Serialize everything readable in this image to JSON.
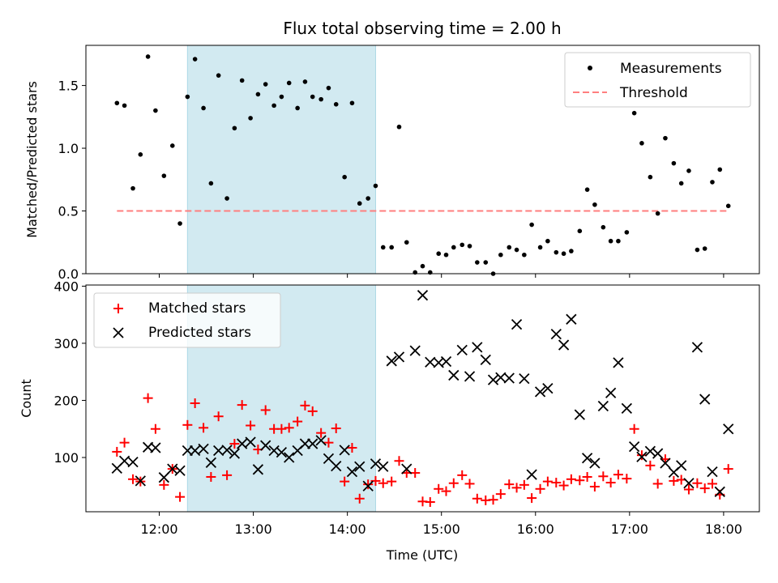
{
  "chart_data": [
    {
      "type": "scatter",
      "title": "Flux total observing time = 2.00 h",
      "ylabel": "Matched/Predicted stars",
      "ylim": [
        0,
        1.82
      ],
      "xlim": [
        11.22,
        18.38
      ],
      "yticks": [
        0.0,
        0.5,
        1.0,
        1.5
      ],
      "ytick_labels": [
        "0.0",
        "0.5",
        "1.0",
        "1.5"
      ],
      "highlight_span": [
        12.3,
        14.3
      ],
      "highlight_color": "#add8e6",
      "legend_placement": "top-right",
      "series": [
        {
          "name": "Measurements",
          "marker": "dot",
          "color": "#000000",
          "points": [
            [
              11.55,
              1.36
            ],
            [
              11.63,
              1.34
            ],
            [
              11.72,
              0.68
            ],
            [
              11.8,
              0.95
            ],
            [
              11.88,
              1.73
            ],
            [
              11.96,
              1.3
            ],
            [
              12.05,
              0.78
            ],
            [
              12.14,
              1.02
            ],
            [
              12.22,
              0.4
            ],
            [
              12.3,
              1.41
            ],
            [
              12.38,
              1.71
            ],
            [
              12.47,
              1.32
            ],
            [
              12.55,
              0.72
            ],
            [
              12.63,
              1.58
            ],
            [
              12.72,
              0.6
            ],
            [
              12.8,
              1.16
            ],
            [
              12.88,
              1.54
            ],
            [
              12.97,
              1.24
            ],
            [
              13.05,
              1.43
            ],
            [
              13.13,
              1.51
            ],
            [
              13.22,
              1.34
            ],
            [
              13.3,
              1.41
            ],
            [
              13.38,
              1.52
            ],
            [
              13.47,
              1.32
            ],
            [
              13.55,
              1.53
            ],
            [
              13.63,
              1.41
            ],
            [
              13.72,
              1.39
            ],
            [
              13.8,
              1.48
            ],
            [
              13.88,
              1.35
            ],
            [
              13.97,
              0.77
            ],
            [
              14.05,
              1.36
            ],
            [
              14.13,
              0.56
            ],
            [
              14.22,
              0.6
            ],
            [
              14.3,
              0.7
            ],
            [
              14.38,
              0.21
            ],
            [
              14.47,
              0.21
            ],
            [
              14.55,
              1.17
            ],
            [
              14.63,
              0.25
            ],
            [
              14.72,
              0.01
            ],
            [
              14.8,
              0.06
            ],
            [
              14.88,
              0.01
            ],
            [
              14.97,
              0.16
            ],
            [
              15.05,
              0.15
            ],
            [
              15.13,
              0.21
            ],
            [
              15.22,
              0.23
            ],
            [
              15.3,
              0.22
            ],
            [
              15.38,
              0.09
            ],
            [
              15.47,
              0.09
            ],
            [
              15.55,
              0.0
            ],
            [
              15.63,
              0.15
            ],
            [
              15.72,
              0.21
            ],
            [
              15.8,
              0.19
            ],
            [
              15.88,
              0.15
            ],
            [
              15.96,
              0.39
            ],
            [
              16.05,
              0.21
            ],
            [
              16.13,
              0.26
            ],
            [
              16.22,
              0.17
            ],
            [
              16.3,
              0.16
            ],
            [
              16.38,
              0.18
            ],
            [
              16.47,
              0.34
            ],
            [
              16.55,
              0.67
            ],
            [
              16.63,
              0.55
            ],
            [
              16.72,
              0.37
            ],
            [
              16.8,
              0.26
            ],
            [
              16.88,
              0.26
            ],
            [
              16.97,
              0.33
            ],
            [
              17.05,
              1.28
            ],
            [
              17.13,
              1.04
            ],
            [
              17.22,
              0.77
            ],
            [
              17.3,
              0.48
            ],
            [
              17.38,
              1.08
            ],
            [
              17.47,
              0.88
            ],
            [
              17.55,
              0.72
            ],
            [
              17.63,
              0.82
            ],
            [
              17.72,
              0.19
            ],
            [
              17.8,
              0.2
            ],
            [
              17.88,
              0.73
            ],
            [
              17.96,
              0.83
            ],
            [
              18.05,
              0.54
            ]
          ]
        },
        {
          "name": "Threshold",
          "marker": "dashed-line",
          "color": "#ff7f7f",
          "points": [
            [
              11.55,
              0.5
            ],
            [
              18.05,
              0.5
            ]
          ]
        }
      ]
    },
    {
      "type": "scatter",
      "xlabel": "Time (UTC)",
      "ylabel": "Count",
      "ylim": [
        5,
        402
      ],
      "xlim": [
        11.22,
        18.38
      ],
      "yticks": [
        100,
        200,
        300,
        400
      ],
      "ytick_labels": [
        "100",
        "200",
        "300",
        "400"
      ],
      "xticks": [
        12,
        13,
        14,
        15,
        16,
        17,
        18
      ],
      "xtick_labels": [
        "12:00",
        "13:00",
        "14:00",
        "15:00",
        "16:00",
        "17:00",
        "18:00"
      ],
      "highlight_span": [
        12.3,
        14.3
      ],
      "highlight_color": "#add8e6",
      "legend_placement": "top-left",
      "series": [
        {
          "name": "Matched stars",
          "marker": "plus",
          "color": "#ff0000",
          "points": [
            [
              11.55,
              110
            ],
            [
              11.63,
              126
            ],
            [
              11.72,
              62
            ],
            [
              11.8,
              58
            ],
            [
              11.88,
              204
            ],
            [
              11.96,
              150
            ],
            [
              12.05,
              52
            ],
            [
              12.14,
              80
            ],
            [
              12.22,
              31
            ],
            [
              12.3,
              157
            ],
            [
              12.38,
              195
            ],
            [
              12.47,
              152
            ],
            [
              12.55,
              66
            ],
            [
              12.63,
              172
            ],
            [
              12.72,
              69
            ],
            [
              12.8,
              124
            ],
            [
              12.88,
              192
            ],
            [
              12.97,
              156
            ],
            [
              13.05,
              114
            ],
            [
              13.13,
              183
            ],
            [
              13.22,
              150
            ],
            [
              13.3,
              150
            ],
            [
              13.38,
              152
            ],
            [
              13.47,
              163
            ],
            [
              13.55,
              191
            ],
            [
              13.63,
              181
            ],
            [
              13.72,
              143
            ],
            [
              13.8,
              126
            ],
            [
              13.88,
              151
            ],
            [
              13.97,
              58
            ],
            [
              14.05,
              117
            ],
            [
              14.13,
              28
            ],
            [
              14.22,
              53
            ],
            [
              14.3,
              59
            ],
            [
              14.38,
              55
            ],
            [
              14.47,
              58
            ],
            [
              14.55,
              94
            ],
            [
              14.63,
              73
            ],
            [
              14.72,
              73
            ],
            [
              14.8,
              23
            ],
            [
              14.88,
              22
            ],
            [
              14.97,
              45
            ],
            [
              15.05,
              41
            ],
            [
              15.13,
              55
            ],
            [
              15.22,
              69
            ],
            [
              15.3,
              54
            ],
            [
              15.38,
              28
            ],
            [
              15.47,
              25
            ],
            [
              15.55,
              26
            ],
            [
              15.63,
              36
            ],
            [
              15.72,
              53
            ],
            [
              15.8,
              47
            ],
            [
              15.88,
              52
            ],
            [
              15.96,
              29
            ],
            [
              16.05,
              45
            ],
            [
              16.13,
              58
            ],
            [
              16.22,
              56
            ],
            [
              16.3,
              51
            ],
            [
              16.38,
              62
            ],
            [
              16.47,
              60
            ],
            [
              16.55,
              66
            ],
            [
              16.63,
              49
            ],
            [
              16.72,
              67
            ],
            [
              16.8,
              56
            ],
            [
              16.88,
              70
            ],
            [
              16.97,
              63
            ],
            [
              17.05,
              150
            ],
            [
              17.13,
              104
            ],
            [
              17.22,
              86
            ],
            [
              17.3,
              54
            ],
            [
              17.38,
              97
            ],
            [
              17.47,
              59
            ],
            [
              17.55,
              61
            ],
            [
              17.63,
              44
            ],
            [
              17.72,
              55
            ],
            [
              17.8,
              46
            ],
            [
              17.88,
              54
            ],
            [
              17.96,
              35
            ],
            [
              18.05,
              80
            ]
          ]
        },
        {
          "name": "Predicted stars",
          "marker": "x",
          "color": "#000000",
          "points": [
            [
              11.55,
              81
            ],
            [
              11.63,
              94
            ],
            [
              11.72,
              92
            ],
            [
              11.8,
              59
            ],
            [
              11.88,
              118
            ],
            [
              11.96,
              117
            ],
            [
              12.05,
              65
            ],
            [
              12.14,
              80
            ],
            [
              12.22,
              77
            ],
            [
              12.3,
              112
            ],
            [
              12.38,
              112
            ],
            [
              12.47,
              115
            ],
            [
              12.55,
              91
            ],
            [
              12.63,
              112
            ],
            [
              12.72,
              113
            ],
            [
              12.8,
              107
            ],
            [
              12.88,
              124
            ],
            [
              12.97,
              127
            ],
            [
              13.05,
              79
            ],
            [
              13.13,
              121
            ],
            [
              13.22,
              112
            ],
            [
              13.3,
              109
            ],
            [
              13.38,
              100
            ],
            [
              13.47,
              112
            ],
            [
              13.55,
              124
            ],
            [
              13.63,
              124
            ],
            [
              13.72,
              130
            ],
            [
              13.8,
              98
            ],
            [
              13.88,
              85
            ],
            [
              13.97,
              113
            ],
            [
              14.05,
              75
            ],
            [
              14.13,
              84
            ],
            [
              14.22,
              50
            ],
            [
              14.3,
              89
            ],
            [
              14.38,
              84
            ],
            [
              14.47,
              269
            ],
            [
              14.55,
              276
            ],
            [
              14.63,
              80
            ],
            [
              14.72,
              287
            ],
            [
              14.8,
              384
            ],
            [
              14.88,
              267
            ],
            [
              14.97,
              266
            ],
            [
              15.05,
              268
            ],
            [
              15.13,
              244
            ],
            [
              15.22,
              288
            ],
            [
              15.3,
              242
            ],
            [
              15.38,
              293
            ],
            [
              15.47,
              271
            ],
            [
              15.55,
              236
            ],
            [
              15.63,
              240
            ],
            [
              15.72,
              239
            ],
            [
              15.8,
              333
            ],
            [
              15.88,
              238
            ],
            [
              15.96,
              70
            ],
            [
              16.05,
              215
            ],
            [
              16.13,
              221
            ],
            [
              16.22,
              316
            ],
            [
              16.3,
              297
            ],
            [
              16.38,
              342
            ],
            [
              16.47,
              175
            ],
            [
              16.55,
              99
            ],
            [
              16.63,
              90
            ],
            [
              16.72,
              190
            ],
            [
              16.8,
              213
            ],
            [
              16.88,
              266
            ],
            [
              16.97,
              186
            ],
            [
              17.05,
              119
            ],
            [
              17.13,
              101
            ],
            [
              17.22,
              111
            ],
            [
              17.3,
              107
            ],
            [
              17.38,
              90
            ],
            [
              17.47,
              74
            ],
            [
              17.55,
              86
            ],
            [
              17.63,
              55
            ],
            [
              17.72,
              293
            ],
            [
              17.8,
              202
            ],
            [
              17.88,
              75
            ],
            [
              17.96,
              40
            ],
            [
              18.05,
              150
            ]
          ]
        }
      ]
    }
  ]
}
